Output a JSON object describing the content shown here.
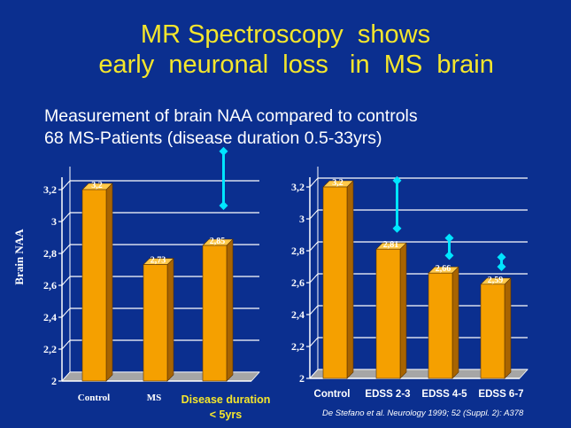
{
  "title_line1": "MR Spectroscopy  shows",
  "title_line2": "   early  neuronal  loss   in  MS  brain",
  "subtitle_line1": "Measurement of brain NAA compared to controls",
  "subtitle_line2": "68 MS-Patients (disease duration 0.5-33yrs)",
  "y_axis_label": "Brain NAA",
  "note_line1": "Disease duration",
  "note_line2": "< 5yrs",
  "citation": "De Stefano et al. Neurology  1999;  52 (Suppl. 2): A378",
  "colors": {
    "background": "#0b2f8f",
    "title": "#f5e62c",
    "bar": "#f5a000",
    "error_bar": "#00e5ff",
    "grid": "#ffffff",
    "floor": "#a6a6a6"
  },
  "chart_data": [
    {
      "type": "bar",
      "title": "",
      "ylabel": "Brain NAA",
      "xlabel": "",
      "ylim": [
        2,
        3.3
      ],
      "yticks": [
        "2",
        "2,2",
        "2,4",
        "2,6",
        "2,8",
        "3",
        "3,2"
      ],
      "grid": true,
      "categories": [
        "Control",
        "MS",
        ""
      ],
      "values": [
        3.2,
        2.73,
        2.85
      ],
      "data_labels": [
        "3,2",
        "2,73",
        "2,85"
      ],
      "error_bars": [
        {
          "category_index": 2,
          "low": 3.1,
          "high": 3.44
        }
      ]
    },
    {
      "type": "bar",
      "title": "",
      "ylabel": "",
      "xlabel": "",
      "ylim": [
        2,
        3.3
      ],
      "yticks": [
        "2",
        "2,2",
        "2,4",
        "2,6",
        "2,8",
        "3",
        "3,2"
      ],
      "grid": true,
      "categories": [
        "Control",
        "EDSS 2-3",
        "EDSS 4-5",
        "EDSS 6-7"
      ],
      "values": [
        3.2,
        2.81,
        2.66,
        2.59
      ],
      "data_labels": [
        "3,2",
        "2,81",
        "2,66",
        "2,59"
      ],
      "error_bars": [
        {
          "category_index": 1,
          "low": 2.94,
          "high": 3.24
        },
        {
          "category_index": 2,
          "low": 2.77,
          "high": 2.88
        },
        {
          "category_index": 3,
          "low": 2.7,
          "high": 2.76
        }
      ]
    }
  ]
}
